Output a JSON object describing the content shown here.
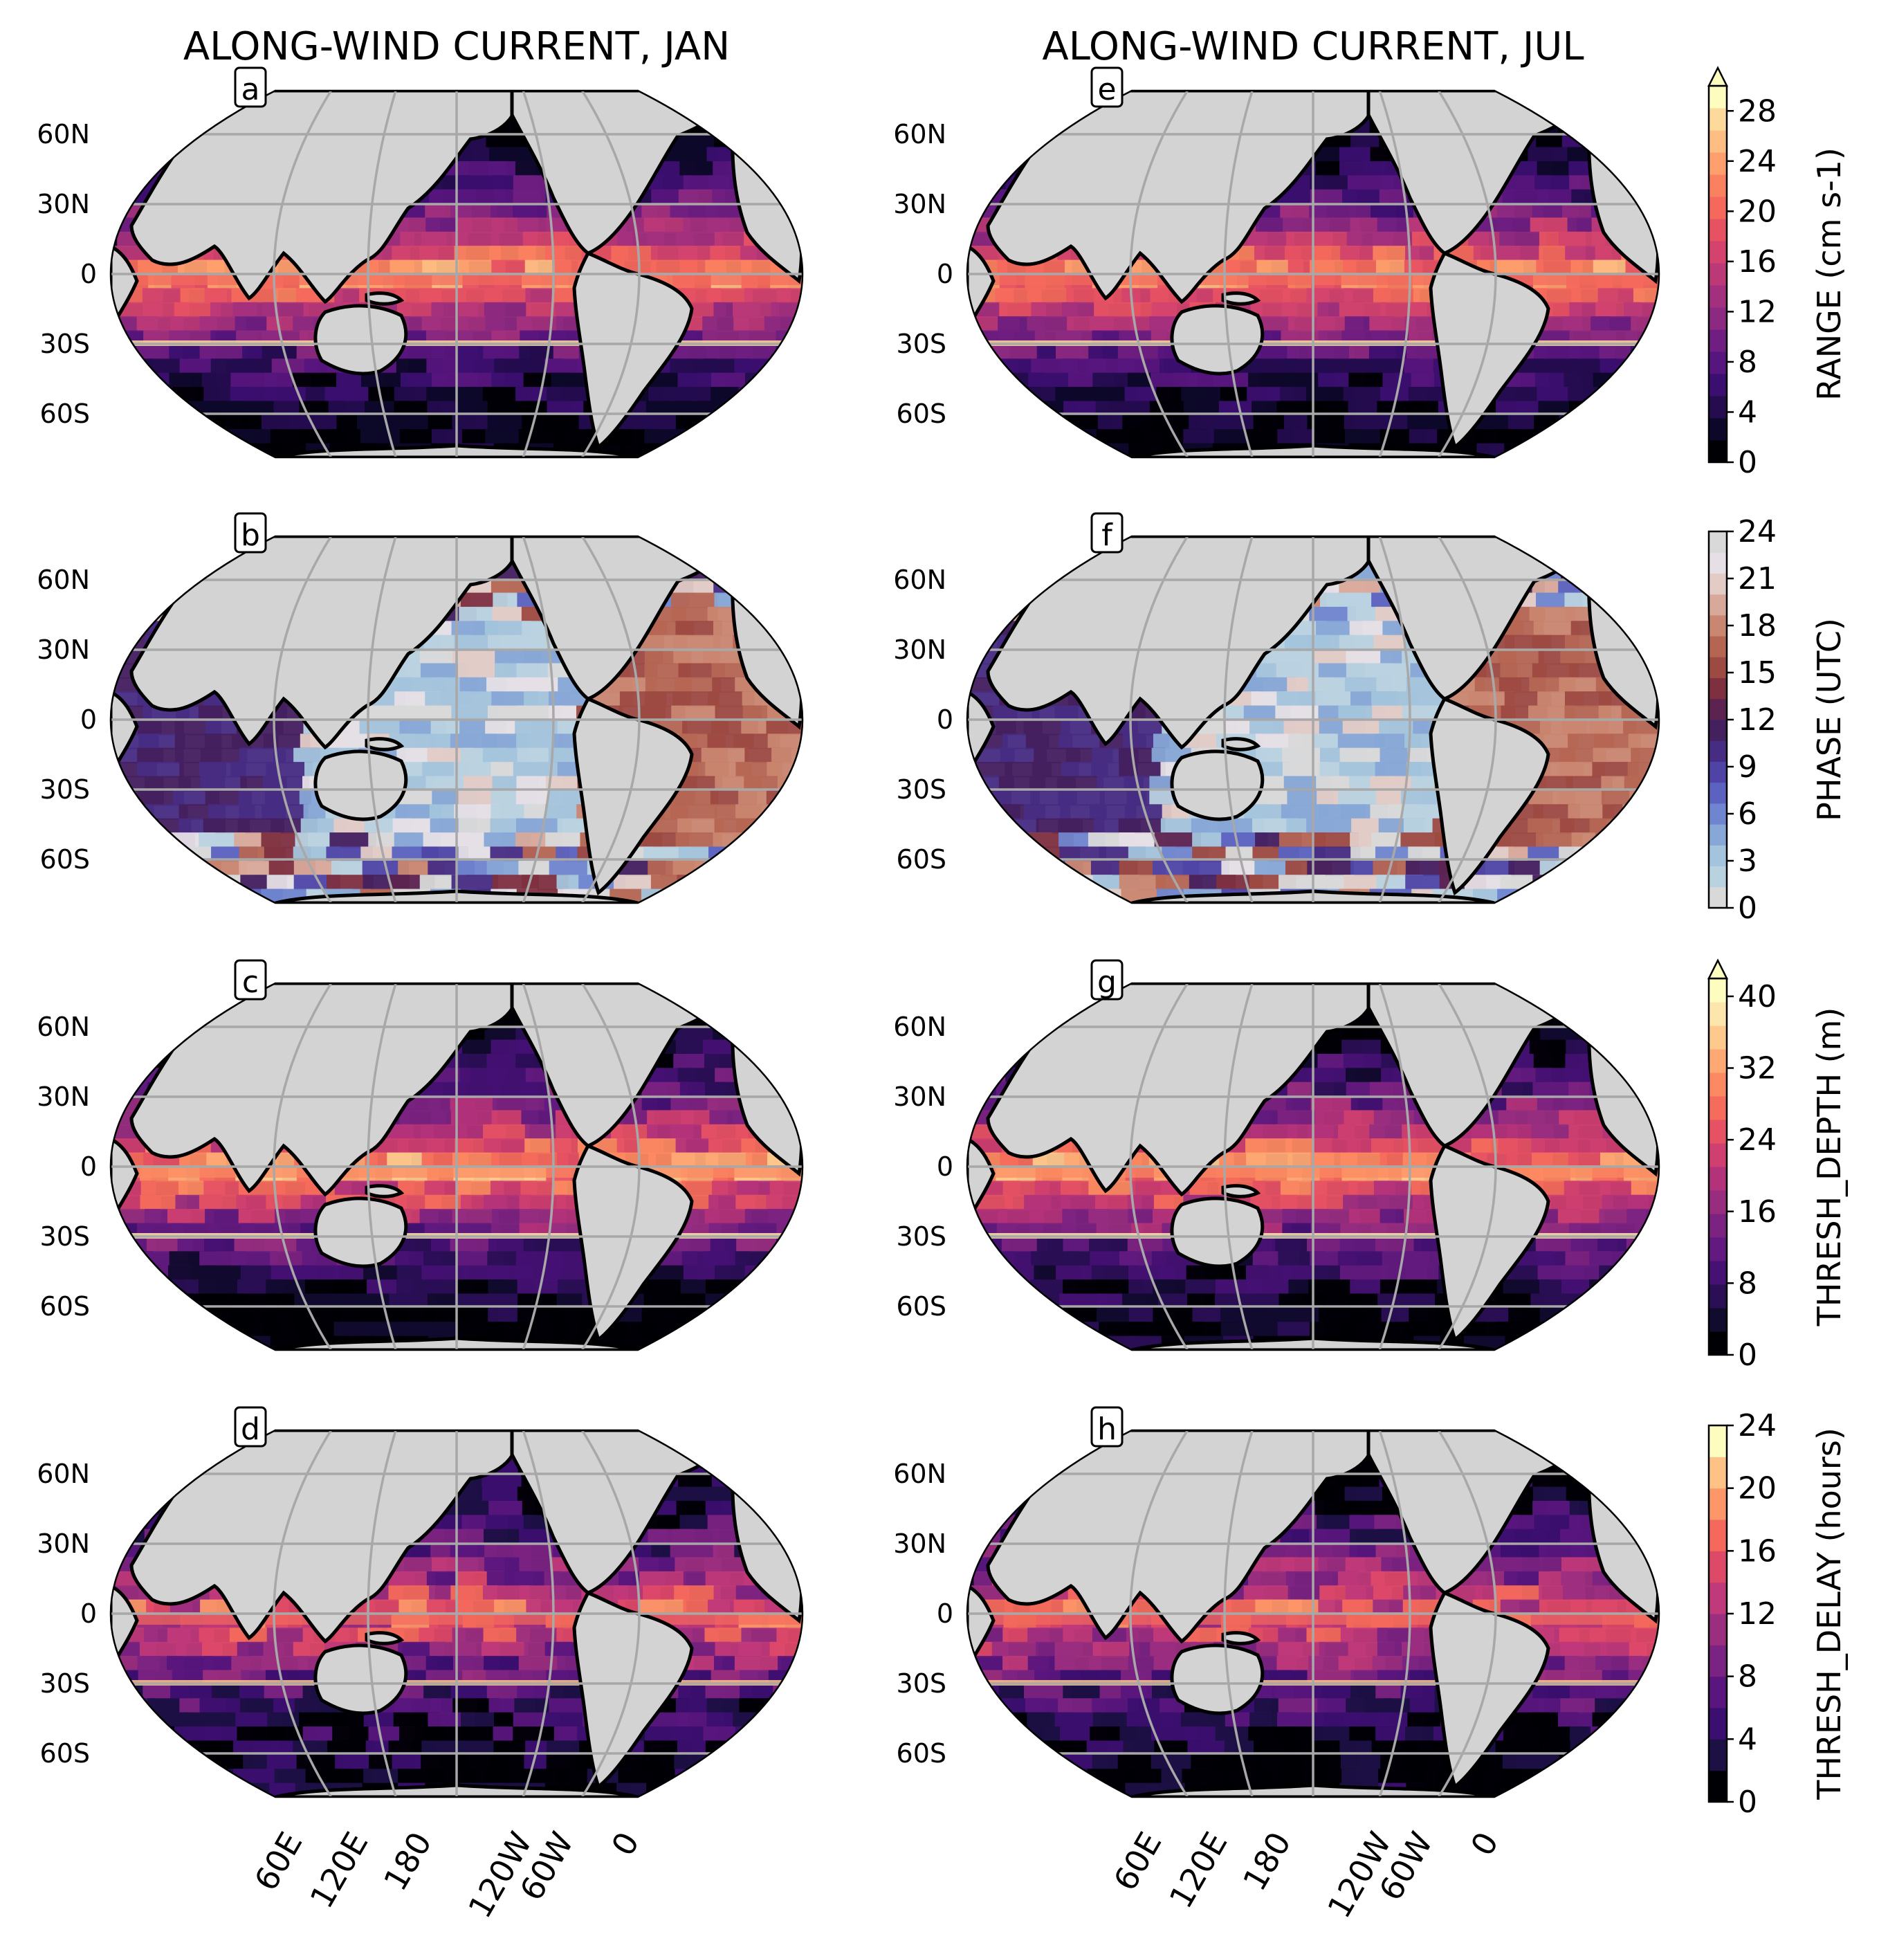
{
  "columns": [
    {
      "id": "jan",
      "title": "ALONG-WIND CURRENT, JAN"
    },
    {
      "id": "jul",
      "title": "ALONG-WIND CURRENT, JUL"
    }
  ],
  "lat_labels": [
    "60N",
    "30N",
    "0",
    "30S",
    "60S"
  ],
  "lon_labels": [
    "60E",
    "120E",
    "180",
    "120W",
    "60W",
    "0"
  ],
  "rows": [
    {
      "field": "range",
      "panels": [
        "a",
        "e"
      ],
      "colorbar": {
        "label": "RANGE (cm s-1)",
        "ticks": [
          "0",
          "4",
          "8",
          "12",
          "16",
          "20",
          "24",
          "28"
        ],
        "min": 0,
        "max": 30,
        "extend": "max",
        "colors": [
          "#000004",
          "#0d0829",
          "#240c4f",
          "#3b0f70",
          "#57157e",
          "#6f1f81",
          "#8c2981",
          "#a3307e",
          "#bc3978",
          "#d3436e",
          "#e75263",
          "#f4695c",
          "#fa815f",
          "#fe9f6d",
          "#febd82",
          "#fdda9c",
          "#fcfdbf"
        ]
      }
    },
    {
      "field": "phase",
      "panels": [
        "b",
        "f"
      ],
      "colorbar": {
        "label": "PHASE (UTC)",
        "ticks": [
          "0",
          "3",
          "6",
          "9",
          "12",
          "15",
          "18",
          "21",
          "24"
        ],
        "min": 0,
        "max": 24,
        "extend": "neither",
        "colors": [
          "#d9d9d9",
          "#b9d2e0",
          "#a3c4dc",
          "#87a7d6",
          "#6f85cf",
          "#5b62c0",
          "#4f44a6",
          "#472c83",
          "#45205f",
          "#5d2350",
          "#7e3040",
          "#9d4a42",
          "#b56653",
          "#c98670",
          "#d8a99a",
          "#e3cbc6",
          "#e6dfe6",
          "#d9d9d9"
        ]
      }
    },
    {
      "field": "thresh_depth",
      "panels": [
        "c",
        "g"
      ],
      "colorbar": {
        "label": "THRESH_DEPTH (m)",
        "ticks": [
          "0",
          "8",
          "16",
          "24",
          "32",
          "40"
        ],
        "min": 0,
        "max": 42,
        "extend": "max",
        "colors": [
          "#000004",
          "#110b2e",
          "#2a0f55",
          "#451173",
          "#621a80",
          "#7c2382",
          "#982d80",
          "#b3337a",
          "#cf3f70",
          "#e65163",
          "#f56b5c",
          "#fc8961",
          "#fea973",
          "#fec98d",
          "#fde6ab",
          "#fcfdbf"
        ]
      }
    },
    {
      "field": "thresh_delay",
      "panels": [
        "d",
        "h"
      ],
      "colorbar": {
        "label": "THRESH_DELAY (hours)",
        "ticks": [
          "0",
          "4",
          "8",
          "12",
          "16",
          "20",
          "24"
        ],
        "min": 0,
        "max": 24,
        "extend": "neither",
        "colors": [
          "#000004",
          "#1c1044",
          "#3b0f70",
          "#5a167e",
          "#7b2382",
          "#9c2e7f",
          "#c0397a",
          "#de4968",
          "#f4695c",
          "#fd9668",
          "#fec287",
          "#fcfdbf"
        ]
      }
    }
  ],
  "style": {
    "land": "#d3d3d3",
    "coast": "#000000",
    "grid": "#a8a8a8",
    "ocean_base": "#140a30"
  }
}
